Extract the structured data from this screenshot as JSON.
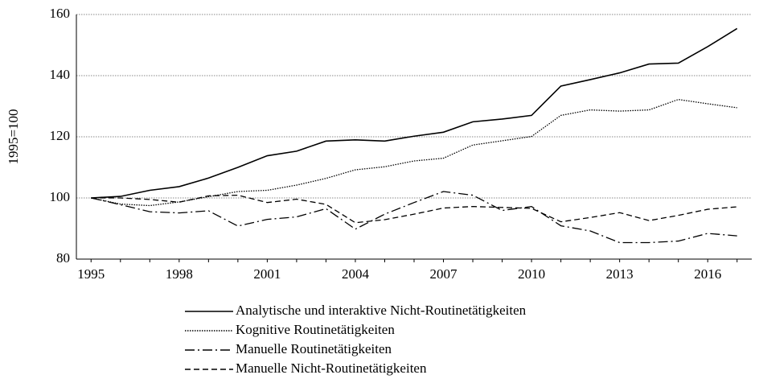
{
  "chart_data": {
    "type": "line",
    "y_label": "1995=100",
    "x": [
      1995,
      1996,
      1997,
      1998,
      1999,
      2000,
      2001,
      2002,
      2003,
      2004,
      2005,
      2006,
      2007,
      2008,
      2009,
      2010,
      2011,
      2012,
      2013,
      2014,
      2015,
      2016,
      2017
    ],
    "series": [
      {
        "name": "Analytische und interaktive Nicht-Routinetätigkeiten",
        "color": "#000000",
        "style": "solid",
        "values": [
          100,
          100.5,
          102.5,
          103.7,
          106.5,
          110,
          113.8,
          115.3,
          118.6,
          119,
          118.6,
          120.2,
          121.5,
          124.9,
          125.8,
          127,
          136.6,
          138.7,
          140.9,
          143.8,
          144.1,
          149.5,
          155.4
        ]
      },
      {
        "name": "Kognitive Routinetätigkeiten",
        "color": "#000000",
        "style": "dotted",
        "values": [
          100,
          98,
          97.5,
          98.7,
          100.4,
          102.1,
          102.5,
          104.2,
          106.4,
          109.2,
          110.2,
          112.1,
          113,
          117.3,
          118.7,
          120.1,
          127,
          128.8,
          128.4,
          128.8,
          132.2,
          130.8,
          129.5
        ]
      },
      {
        "name": "Manuelle Routinetätigkeiten",
        "color": "#000000",
        "style": "dashdot",
        "values": [
          100,
          97.8,
          95.5,
          95.1,
          95.8,
          90.8,
          93,
          93.8,
          96.5,
          89.8,
          94.7,
          98.5,
          102.1,
          100.9,
          95.9,
          97.2,
          90.9,
          89.2,
          85.4,
          85.4,
          85.9,
          88.4,
          87.6
        ]
      },
      {
        "name": "Manuelle Nicht-Routinetätigkeiten",
        "color": "#000000",
        "style": "dashed",
        "values": [
          100,
          100,
          99.5,
          98.6,
          100.7,
          100.9,
          98.5,
          99.6,
          97.9,
          91.9,
          92.9,
          94.7,
          96.7,
          97.2,
          96.9,
          96.6,
          92.2,
          93.6,
          95.2,
          92.6,
          94.3,
          96.3,
          97.1
        ]
      }
    ],
    "xlim": [
      1994.5,
      2017.5
    ],
    "xticks": [
      1995,
      1998,
      2001,
      2004,
      2007,
      2010,
      2013,
      2016
    ],
    "ylim": [
      80,
      160
    ],
    "yticks": [
      80,
      100,
      120,
      140,
      160
    ],
    "grid": true,
    "legend": "bottom"
  }
}
